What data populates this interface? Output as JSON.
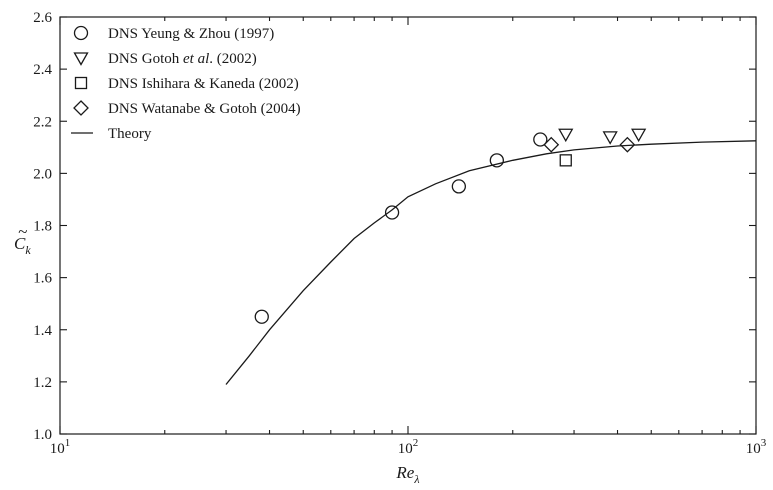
{
  "chart_data": {
    "type": "scatter",
    "title": "",
    "xlabel": "Re",
    "xlabel_sub": "λ",
    "ylabel": "C",
    "ylabel_sub": "k",
    "ylabel_accent": "~",
    "x_scale": "log",
    "xlim": [
      10,
      1000
    ],
    "ylim": [
      1.0,
      2.6
    ],
    "x_ticks": [
      {
        "value": 10,
        "base": "10",
        "exp": "1"
      },
      {
        "value": 100,
        "base": "10",
        "exp": "2"
      },
      {
        "value": 1000,
        "base": "10",
        "exp": "3"
      }
    ],
    "y_ticks": [
      1.0,
      1.2,
      1.4,
      1.6,
      1.8,
      2.0,
      2.2,
      2.4,
      2.6
    ],
    "y_tick_labels": [
      "1.0",
      "1.2",
      "1.4",
      "1.6",
      "1.8",
      "2.0",
      "2.2",
      "2.4",
      "2.6"
    ],
    "grid": false,
    "legend_position": "top-left",
    "series": [
      {
        "name": "DNS Yeung & Zhou (1997)",
        "legend_parts": [
          {
            "text": "DNS Yeung & Zhou (1997)",
            "italic": false
          }
        ],
        "marker": "circle",
        "points": [
          [
            38,
            1.45
          ],
          [
            90,
            1.85
          ],
          [
            140,
            1.95
          ],
          [
            180,
            2.05
          ],
          [
            240,
            2.13
          ]
        ]
      },
      {
        "name": "DNS Gotoh et al. (2002)",
        "legend_parts": [
          {
            "text": "DNS Gotoh ",
            "italic": false
          },
          {
            "text": "et al",
            "italic": true
          },
          {
            "text": ". (2002)",
            "italic": false
          }
        ],
        "marker": "triangle-down",
        "points": [
          [
            284,
            2.15
          ],
          [
            381,
            2.14
          ],
          [
            460,
            2.15
          ]
        ]
      },
      {
        "name": "DNS Ishihara & Kaneda (2002)",
        "legend_parts": [
          {
            "text": "DNS Ishihara & Kaneda (2002)",
            "italic": false
          }
        ],
        "marker": "square",
        "points": [
          [
            284,
            2.05
          ]
        ]
      },
      {
        "name": "DNS Watanabe & Gotoh (2004)",
        "legend_parts": [
          {
            "text": "DNS Watanabe & Gotoh (2004)",
            "italic": false
          }
        ],
        "marker": "diamond",
        "points": [
          [
            258,
            2.11
          ],
          [
            427,
            2.11
          ]
        ]
      },
      {
        "name": "Theory",
        "legend_parts": [
          {
            "text": "Theory",
            "italic": false
          }
        ],
        "marker": "line",
        "points": [
          [
            30,
            1.19
          ],
          [
            35,
            1.3
          ],
          [
            40,
            1.4
          ],
          [
            50,
            1.55
          ],
          [
            60,
            1.66
          ],
          [
            70,
            1.75
          ],
          [
            80,
            1.81
          ],
          [
            90,
            1.86
          ],
          [
            100,
            1.91
          ],
          [
            120,
            1.96
          ],
          [
            150,
            2.01
          ],
          [
            200,
            2.05
          ],
          [
            250,
            2.075
          ],
          [
            300,
            2.09
          ],
          [
            400,
            2.105
          ],
          [
            500,
            2.112
          ],
          [
            700,
            2.12
          ],
          [
            1000,
            2.125
          ]
        ]
      }
    ]
  }
}
